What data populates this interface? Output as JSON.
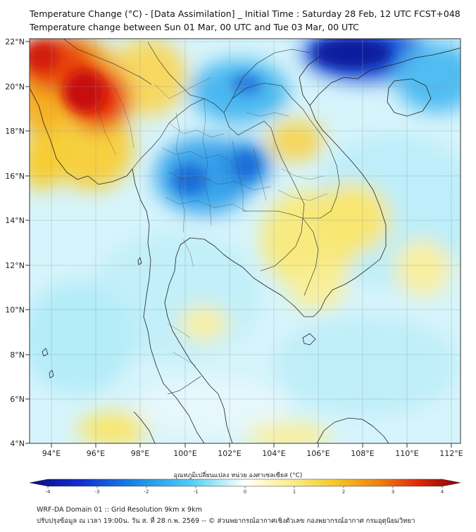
{
  "title_line1": "Temperature Change (°C) - [Data Assimilation] _ Initial Time : Saturday 28 Feb, 12 UTC FCST+048",
  "title_line2": "Temperature change between Sun 01 Mar, 00 UTC and Tue 03 Mar, 00 UTC",
  "lat_labels": [
    "22°N",
    "20°N",
    "18°N",
    "16°N",
    "14°N",
    "12°N",
    "10°N",
    "8°N",
    "6°N",
    "4°N"
  ],
  "lon_labels": [
    "94°E",
    "96°E",
    "98°E",
    "100°E",
    "102°E",
    "104°E",
    "106°E",
    "108°E",
    "110°E",
    "112°E"
  ],
  "colorbar": {
    "title": "อุณหภูมิเปลี่ยนแปลง หน่วย องศาเซลเซียส (°C)",
    "ticks": [
      "-4",
      "-3",
      "-2",
      "-1",
      "0",
      "1",
      "2",
      "3",
      "4"
    ],
    "min": -4,
    "max": 4
  },
  "footer_line1": "WRF-DA Domain 01 :: Grid Resolution 9km x 9km",
  "footer_line2": "ปรับปรุงข้อมูล ณ เวลา 19:00น. วัน ส. ที่ 28 ก.พ. 2569 -- © ส่วนพยากรณ์อากาศเชิงตัวเลข กองพยากรณ์อากาศ กรมอุตุนิยมวิทยา",
  "colors": {
    "strong_cold": "#0a1a9e",
    "cold": "#1e90e6",
    "light_cold": "#aeeaf7",
    "neutral": "#f2fbfe",
    "light_warm": "#faf0a0",
    "warm": "#f5c020",
    "hot": "#e8340c",
    "very_hot": "#c00000"
  }
}
